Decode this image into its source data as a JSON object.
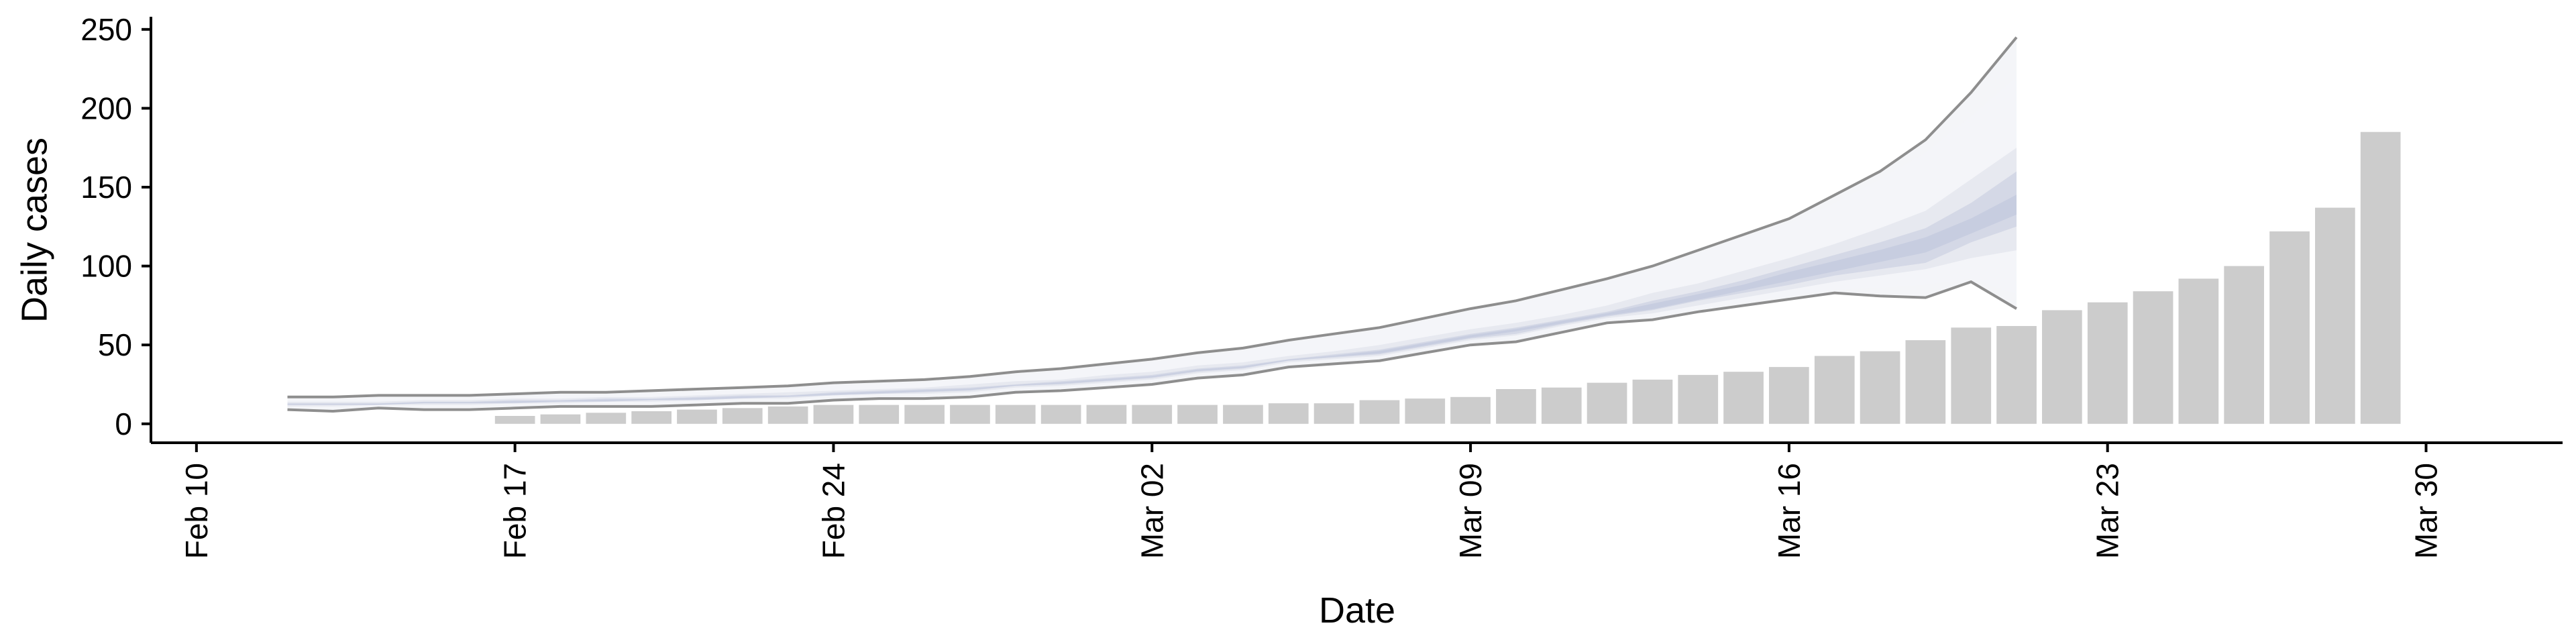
{
  "chart_data": {
    "type": "bar",
    "title": "",
    "xlabel": "Date",
    "ylabel": "Daily cases",
    "x_axis": {
      "type": "date",
      "range": [
        "2020-02-09",
        "2020-04-02"
      ],
      "ticks": [
        {
          "date": "2020-02-10",
          "label": "Feb 10"
        },
        {
          "date": "2020-02-17",
          "label": "Feb 17"
        },
        {
          "date": "2020-02-24",
          "label": "Feb 24"
        },
        {
          "date": "2020-03-02",
          "label": "Mar 02"
        },
        {
          "date": "2020-03-09",
          "label": "Mar 09"
        },
        {
          "date": "2020-03-16",
          "label": "Mar 16"
        },
        {
          "date": "2020-03-23",
          "label": "Mar 23"
        },
        {
          "date": "2020-03-30",
          "label": "Mar 30"
        }
      ],
      "tick_label_rotation": -90
    },
    "y_axis": {
      "range": [
        -12,
        258
      ],
      "ticks": [
        0,
        50,
        100,
        150,
        200,
        250
      ]
    },
    "grid": false,
    "colors": {
      "bars": "#cccccc",
      "band_outer": "#f4f5f8",
      "band_mid": "#e7e9f0",
      "band_inner": "#d4d8e6",
      "band_core": "#c7cde0",
      "upper_line": "#8e8e8e",
      "lower_line": "#8e8e8e",
      "axis": "#000000"
    },
    "bars": {
      "start_date": "2020-02-17",
      "values": [
        5,
        6,
        7,
        8,
        9,
        10,
        11,
        12,
        12,
        12,
        12,
        12,
        12,
        12,
        12,
        12,
        12,
        13,
        13,
        15,
        16,
        17,
        22,
        23,
        26,
        28,
        31,
        33,
        36,
        43,
        46,
        53,
        61,
        62,
        72,
        77,
        84,
        92,
        100,
        122,
        137,
        185
      ]
    },
    "nowcast": {
      "start_date": "2020-02-12",
      "upper_line": [
        17,
        17,
        18,
        18,
        18,
        19,
        20,
        20,
        21,
        22,
        23,
        24,
        26,
        27,
        28,
        30,
        33,
        35,
        38,
        41,
        45,
        48,
        53,
        57,
        61,
        67,
        73,
        78,
        85,
        92,
        100,
        110,
        120,
        130,
        145,
        160,
        180,
        210,
        245
      ],
      "lower_line": [
        9,
        8,
        10,
        9,
        9,
        10,
        11,
        11,
        11,
        12,
        13,
        13,
        15,
        16,
        16,
        17,
        20,
        21,
        23,
        25,
        29,
        31,
        36,
        38,
        40,
        45,
        50,
        52,
        58,
        64,
        66,
        71,
        75,
        79,
        83,
        81,
        80,
        90,
        73
      ],
      "outer_high": [
        15,
        15,
        16,
        16,
        16,
        17,
        18,
        18,
        19,
        20,
        21,
        22,
        24,
        25,
        26,
        28,
        31,
        33,
        36,
        39,
        43,
        46,
        51,
        55,
        59,
        65,
        71,
        76,
        83,
        90,
        98,
        108,
        118,
        127,
        140,
        155,
        172,
        195,
        220
      ],
      "outer_low": [
        10,
        10,
        11,
        11,
        11,
        12,
        12,
        13,
        13,
        14,
        15,
        15,
        17,
        18,
        18,
        19,
        22,
        23,
        25,
        27,
        31,
        33,
        38,
        40,
        42,
        47,
        52,
        54,
        60,
        66,
        68,
        73,
        77,
        81,
        85,
        86,
        88,
        92,
        82
      ],
      "mid_high": [
        14,
        14,
        14,
        15,
        15,
        16,
        16,
        17,
        17,
        18,
        19,
        20,
        21,
        22,
        23,
        25,
        27,
        28,
        31,
        33,
        37,
        39,
        43,
        46,
        50,
        55,
        60,
        64,
        69,
        75,
        83,
        89,
        97,
        105,
        114,
        124,
        135,
        155,
        175
      ],
      "mid_low": [
        11,
        11,
        12,
        12,
        12,
        13,
        13,
        14,
        14,
        15,
        16,
        16,
        18,
        19,
        19,
        20,
        23,
        24,
        26,
        28,
        32,
        34,
        39,
        41,
        43,
        48,
        53,
        56,
        62,
        67,
        70,
        75,
        80,
        85,
        90,
        94,
        98,
        105,
        110
      ],
      "inner_high": [
        13,
        13,
        13,
        14,
        14,
        15,
        15,
        16,
        16,
        17,
        18,
        18,
        20,
        21,
        22,
        23,
        25,
        27,
        29,
        31,
        35,
        37,
        41,
        44,
        47,
        52,
        57,
        61,
        66,
        71,
        78,
        84,
        91,
        99,
        107,
        115,
        124,
        140,
        160
      ],
      "inner_low": [
        12,
        12,
        12,
        13,
        13,
        13,
        14,
        14,
        15,
        15,
        16,
        17,
        18,
        19,
        20,
        21,
        24,
        25,
        27,
        29,
        33,
        35,
        40,
        42,
        44,
        49,
        54,
        57,
        63,
        68,
        72,
        78,
        83,
        88,
        94,
        98,
        102,
        115,
        125
      ],
      "core_high": [
        12.6,
        12.6,
        12.6,
        13.6,
        13.6,
        14.2,
        14.6,
        15.2,
        15.6,
        16.2,
        17.2,
        17.6,
        19.2,
        20.2,
        21.2,
        22.2,
        24.6,
        26.2,
        28.2,
        30.2,
        34.2,
        36.2,
        40.6,
        43.2,
        46.2,
        51.2,
        56.2,
        60.2,
        65.2,
        70.2,
        76.2,
        82.2,
        88.2,
        96.2,
        103.2,
        110.2,
        118.2,
        130.2,
        145.2
      ],
      "core_low": [
        12.2,
        12.2,
        12.2,
        13.2,
        13.2,
        13.6,
        14.2,
        14.6,
        15.2,
        15.6,
        16.6,
        17.2,
        18.6,
        19.6,
        20.6,
        21.6,
        24.2,
        25.6,
        27.6,
        29.6,
        33.6,
        35.6,
        40.2,
        42.6,
        44.6,
        49.6,
        54.6,
        58.6,
        63.6,
        68.6,
        72.6,
        78.6,
        84.6,
        90.6,
        96.6,
        102.6,
        108.6,
        120.6,
        132.6
      ]
    }
  }
}
